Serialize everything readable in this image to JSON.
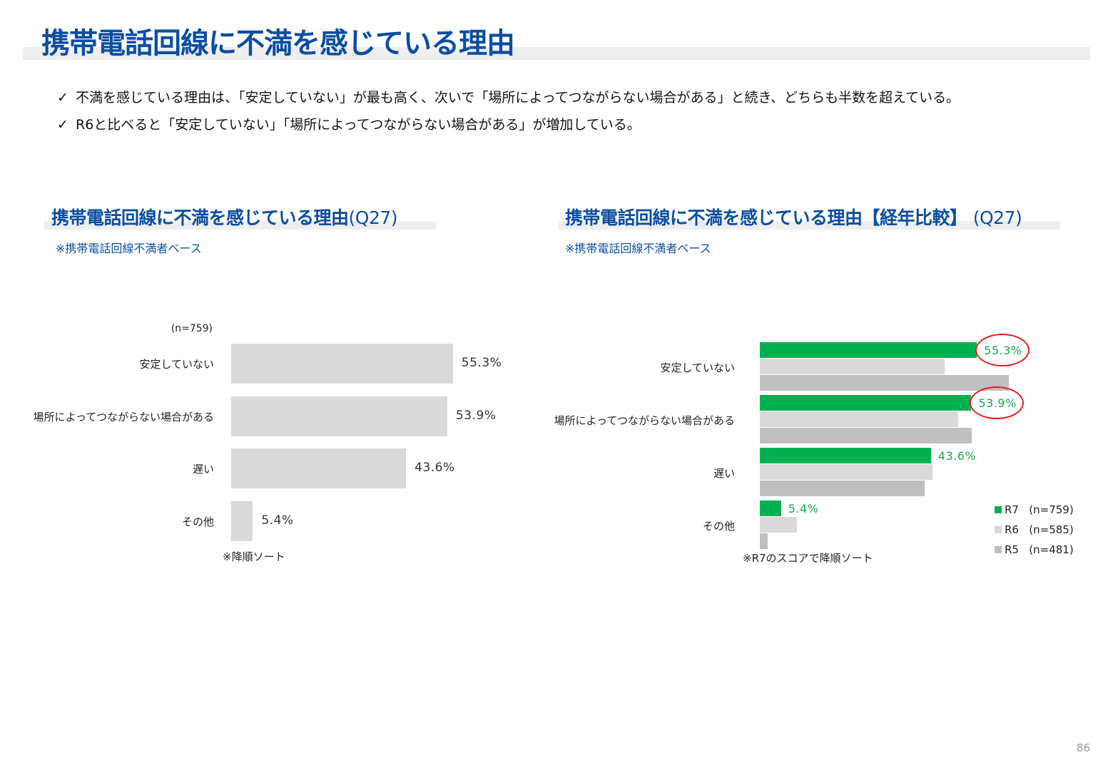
{
  "page": {
    "title": "携帯電話回線に不満を感じている理由",
    "bullets": [
      "不満を感じている理由は、「安定していない」が最も高く、次いで「場所によってつながらない場合がある」と続き、どちらも半数を超えている。",
      "R6と比べると「安定していない」「場所によってつながらない場合がある」が増加している。"
    ],
    "bullet_mark": "✓",
    "page_number": "86"
  },
  "colors": {
    "title_blue": "#0b4ea2",
    "bar_gray": "#d9d9d9",
    "r7_green": "#00b050",
    "r6_light_gray": "#d9d9d9",
    "r5_gray": "#bfbfbf",
    "highlight_red": "#e0201b"
  },
  "left_panel": {
    "title": "携帯電話回線に不満を感じている理由",
    "question": "(Q27)",
    "base_note": "※携帯電話回線不満者ベース",
    "n_label": "(n=759)",
    "sort_note": "※降順ソート"
  },
  "right_panel": {
    "title": "携帯電話回線に不満を感じている理由【経年比較】",
    "question": "(Q27)",
    "base_note": "※携帯電話回線不満者ベース",
    "sort_note": "※R7のスコアで降順ソート",
    "legend": [
      {
        "name": "R7",
        "n": "(n=759)"
      },
      {
        "name": "R6",
        "n": "(n=585)"
      },
      {
        "name": "R5",
        "n": "(n=481)"
      }
    ]
  },
  "chart_data": [
    {
      "type": "bar",
      "orientation": "horizontal",
      "title": "携帯電話回線に不満を感じている理由(Q27)",
      "categories": [
        "安定していない",
        "場所によってつながらない場合がある",
        "遅い",
        "その他"
      ],
      "values": [
        55.3,
        53.9,
        43.6,
        5.4
      ],
      "value_labels": [
        "55.3%",
        "53.9%",
        "43.6%",
        "5.4%"
      ],
      "unit": "%",
      "xlim": [
        0,
        100
      ],
      "grid": false
    },
    {
      "type": "bar",
      "orientation": "horizontal",
      "title": "携帯電話回線に不満を感じている理由【経年比較】(Q27)",
      "categories": [
        "安定していない",
        "場所によってつながらない場合がある",
        "遅い",
        "その他"
      ],
      "series": [
        {
          "name": "R7",
          "values": [
            55.3,
            53.9,
            43.6,
            5.4
          ],
          "value_labels": [
            "55.3%",
            "53.9%",
            "43.6%",
            "5.4%"
          ]
        },
        {
          "name": "R6",
          "values": [
            47,
            50.5,
            44,
            9.5
          ]
        },
        {
          "name": "R5",
          "values": [
            63.5,
            54,
            42,
            2
          ]
        }
      ],
      "highlighted": [
        "55.3%",
        "53.9%"
      ],
      "unit": "%",
      "xlim": [
        0,
        100
      ],
      "legend_position": "bottom-right",
      "grid": false
    }
  ]
}
